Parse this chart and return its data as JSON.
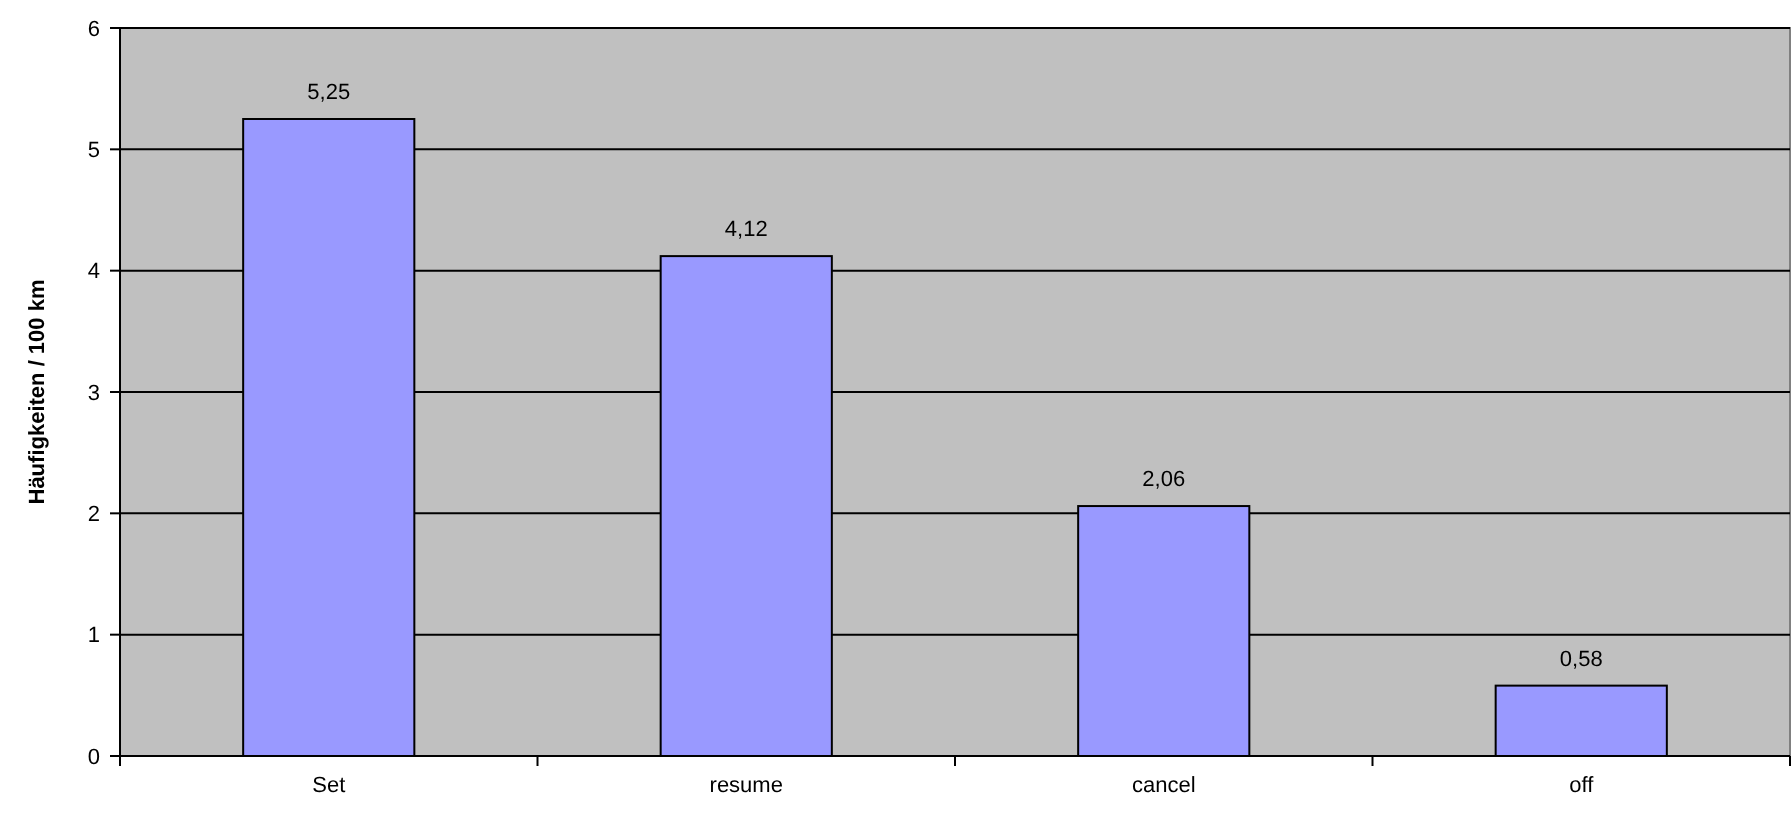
{
  "chart_data": {
    "type": "bar",
    "ylabel": "Häufigkeiten / 100 km",
    "categories": [
      "Set",
      "resume",
      "cancel",
      "off"
    ],
    "values": [
      5.25,
      4.12,
      2.06,
      0.58
    ],
    "value_labels": [
      "5,25",
      "4,12",
      "2,06",
      "0,58"
    ],
    "color": "#9999ff",
    "ylim": [
      0,
      6
    ],
    "yticks": [
      0,
      1,
      2,
      3,
      4,
      5,
      6
    ],
    "grid": "y"
  }
}
